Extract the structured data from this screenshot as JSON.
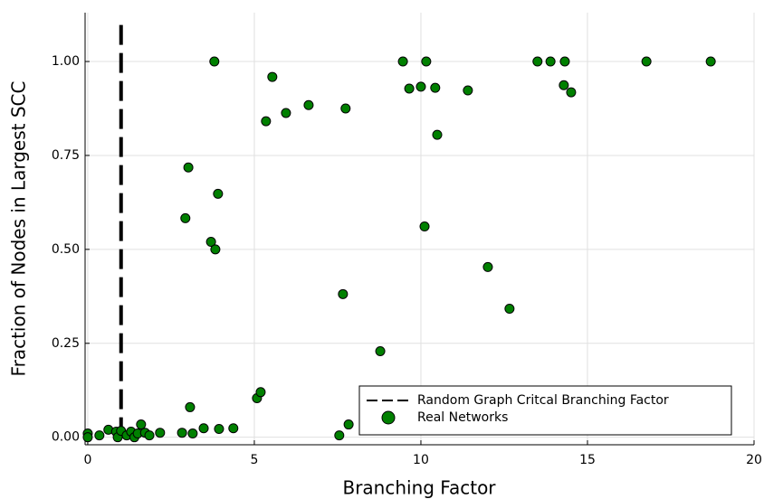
{
  "chart_data": {
    "type": "scatter",
    "xlabel": "Branching Factor",
    "ylabel": "Fraction of Nodes in Largest SCC",
    "xlim": [
      -0.08,
      20
    ],
    "ylim": [
      -0.02,
      1.13
    ],
    "xticks": [
      0,
      5,
      10,
      15,
      20
    ],
    "yticks": [
      {
        "value": 0,
        "label": "0.00"
      },
      {
        "value": 0.25,
        "label": "0.25"
      },
      {
        "value": 0.5,
        "label": "0.50"
      },
      {
        "value": 0.75,
        "label": "0.75"
      },
      {
        "value": 1,
        "label": "1.00"
      }
    ],
    "grid": true,
    "legend": "lower right",
    "series": [
      {
        "name": "Random Graph Critcal Branching Factor",
        "kind": "line",
        "style": "dashed",
        "color": "#000000",
        "x": [
          1,
          1
        ],
        "values": [
          0,
          1.1
        ]
      },
      {
        "name": "Real Networks",
        "kind": "scatter",
        "color": "#008000",
        "x": [
          0,
          0,
          0.35,
          0.62,
          0.85,
          0.9,
          1.0,
          1.17,
          1.3,
          1.4,
          1.5,
          1.6,
          1.72,
          1.85,
          2.17,
          2.83,
          3.15,
          3.07,
          3.48,
          3.94,
          4.37,
          5.08,
          5.19,
          3.02,
          2.93,
          3.7,
          3.83,
          3.91,
          3.8,
          5.54,
          5.35,
          5.95,
          6.63,
          7.74,
          7.66,
          7.55,
          7.83,
          8.78,
          9.46,
          9.65,
          10.0,
          10.16,
          10.43,
          10.49,
          10.11,
          11.41,
          12.01,
          12.66,
          13.5,
          13.89,
          14.32,
          14.29,
          14.51,
          16.77,
          18.7
        ],
        "values": [
          0.01,
          0,
          0.005,
          0.02,
          0.015,
          0,
          0.017,
          0.005,
          0.015,
          0,
          0.01,
          0.034,
          0.012,
          0.005,
          0.012,
          0.012,
          0.01,
          0.08,
          0.024,
          0.022,
          0.024,
          0.104,
          0.12,
          0.718,
          0.583,
          0.52,
          0.5,
          0.648,
          1.0,
          0.959,
          0.841,
          0.863,
          0.884,
          0.875,
          0.381,
          0.005,
          0.034,
          0.229,
          1.0,
          0.928,
          0.933,
          1.0,
          0.93,
          0.805,
          0.561,
          0.923,
          0.453,
          0.342,
          1.0,
          1.0,
          1.0,
          0.937,
          0.918,
          1.0,
          1.0
        ]
      }
    ]
  }
}
